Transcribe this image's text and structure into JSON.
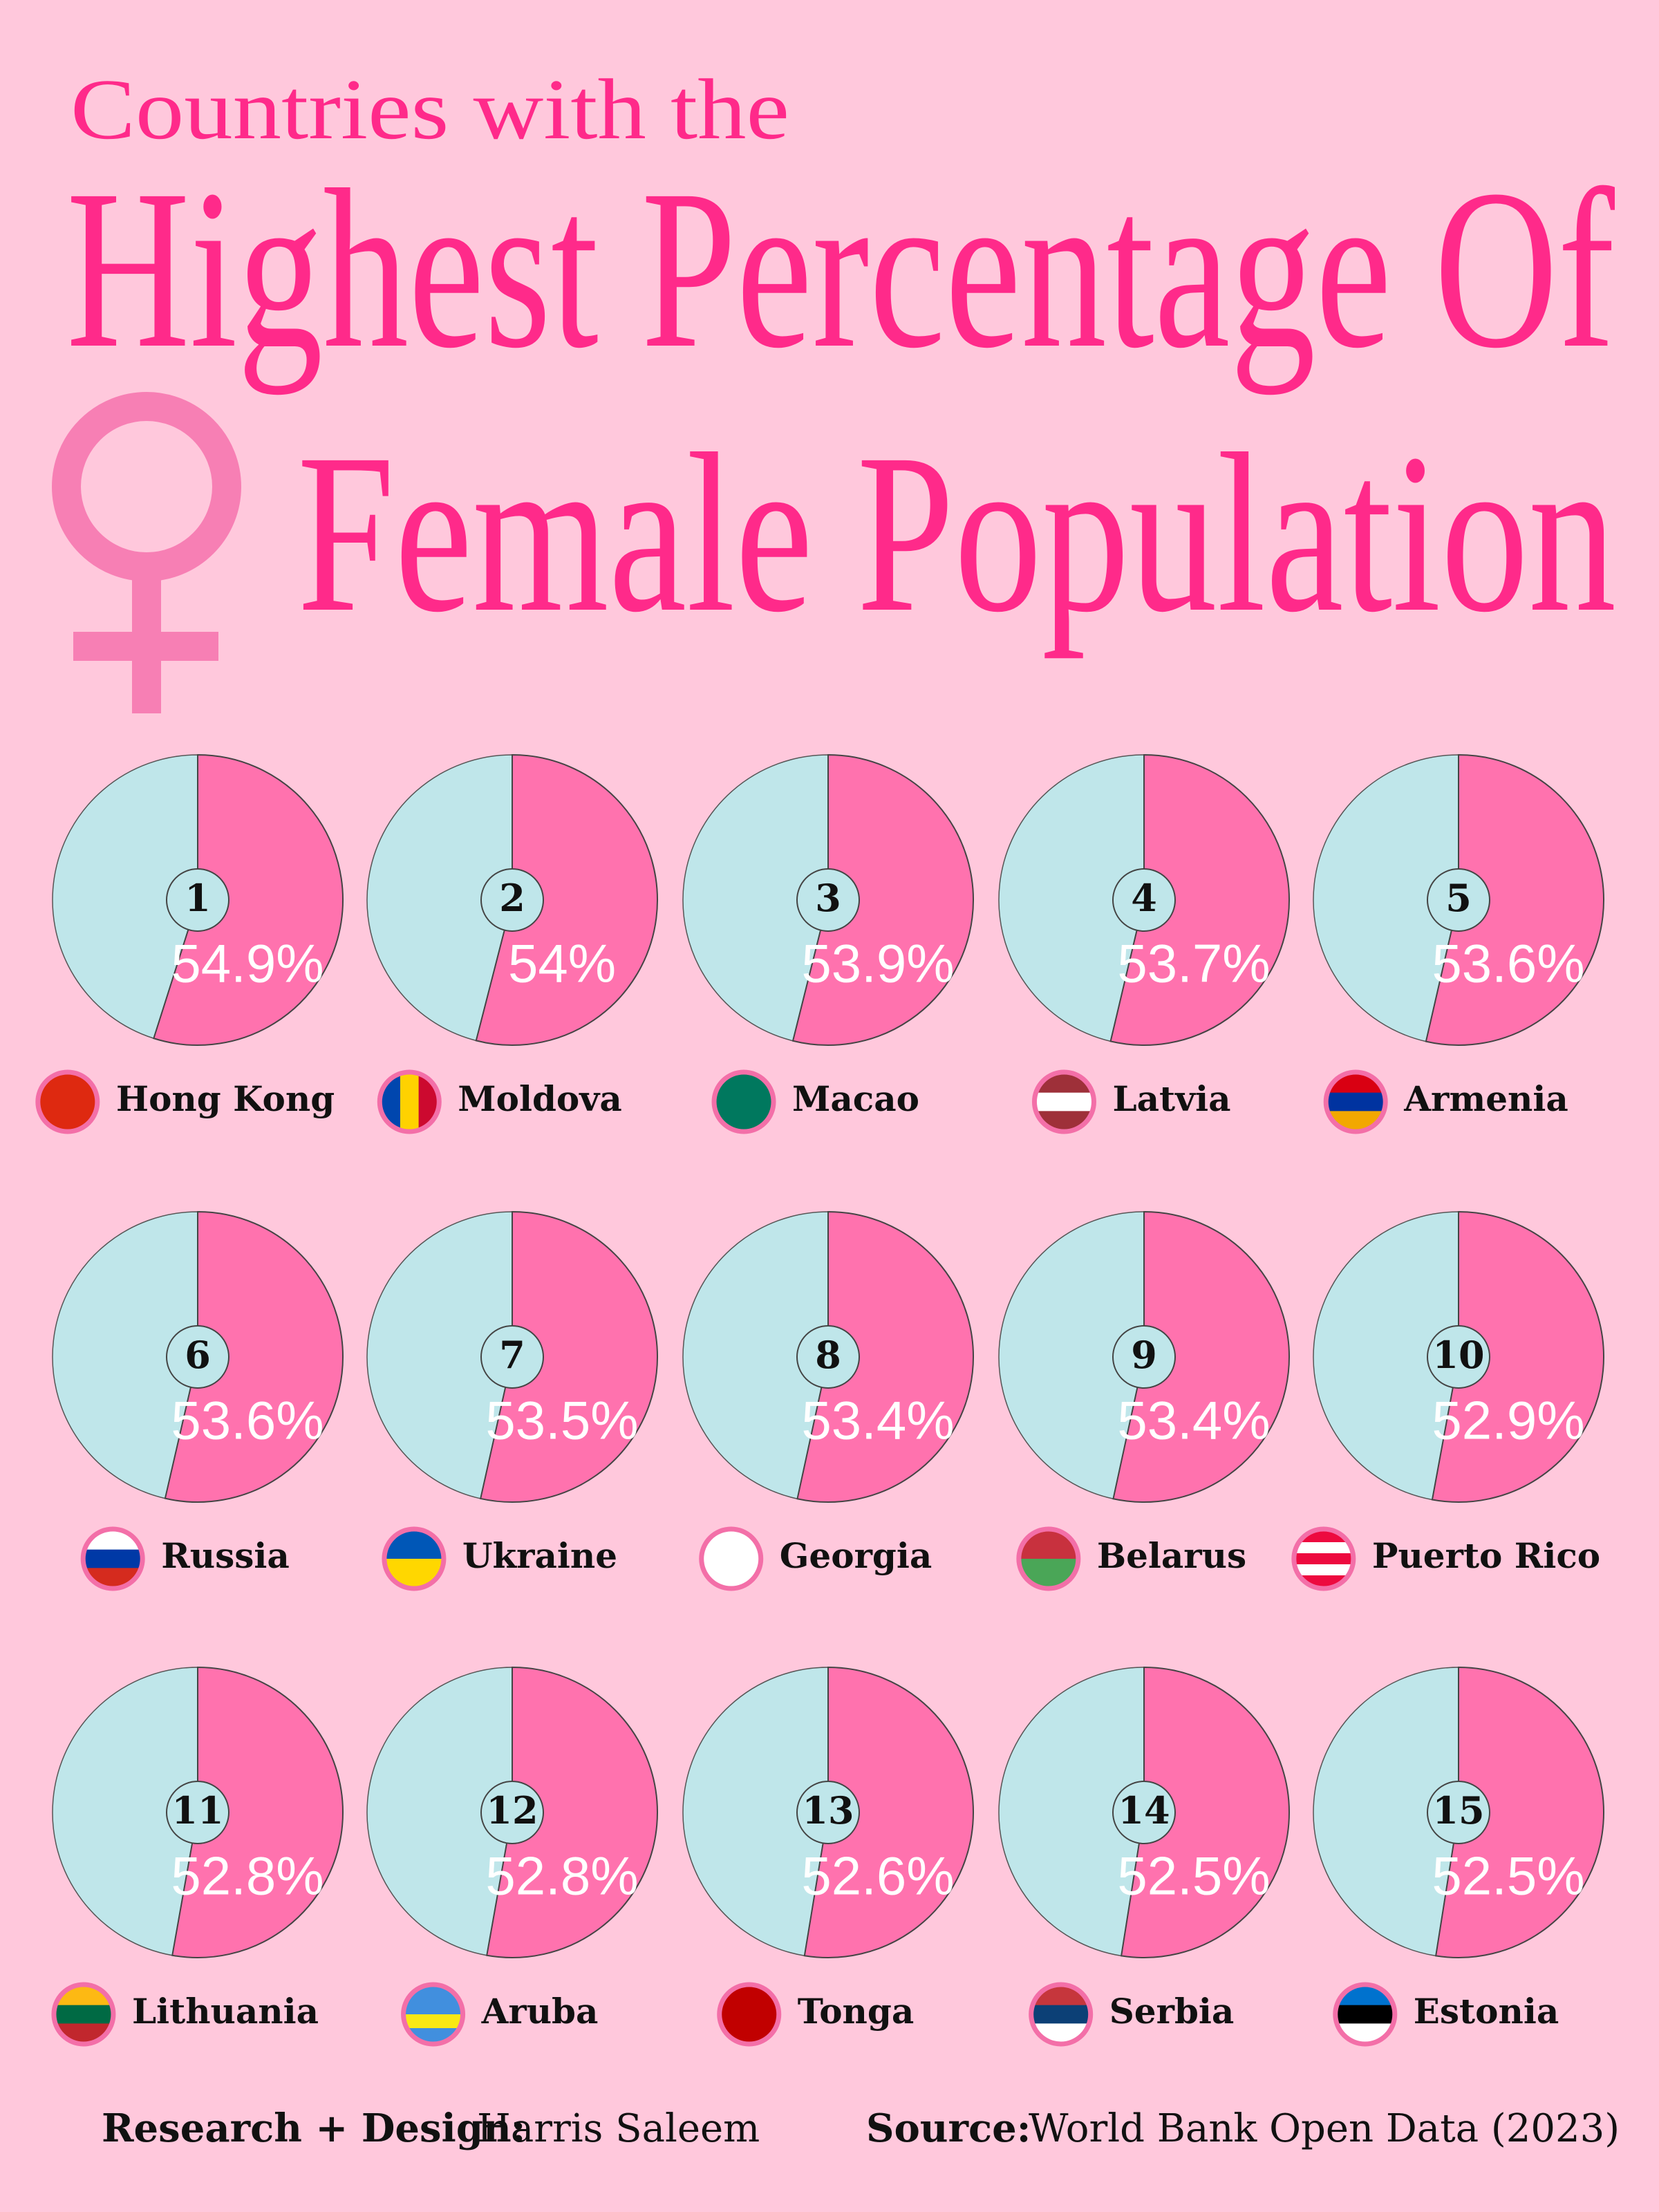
{
  "chart_data": {
    "type": "pie",
    "pretitle": "Countries with the",
    "title": "Highest Percentage Of",
    "title2": "Female Population",
    "ranks": [
      1,
      2,
      3,
      4,
      5,
      6,
      7,
      8,
      9,
      10,
      11,
      12,
      13,
      14,
      15
    ],
    "categories": [
      "Hong Kong",
      "Moldova",
      "Macao",
      "Latvia",
      "Armenia",
      "Russia",
      "Ukraine",
      "Georgia",
      "Belarus",
      "Puerto Rico",
      "Lithuania",
      "Aruba",
      "Tonga",
      "Serbia",
      "Estonia"
    ],
    "values": [
      54.9,
      54,
      53.9,
      53.7,
      53.6,
      53.6,
      53.5,
      53.4,
      53.4,
      52.9,
      52.8,
      52.8,
      52.6,
      52.5,
      52.5
    ],
    "value_labels": [
      "54.9%",
      "54%",
      "53.9%",
      "53.7%",
      "53.6%",
      "53.6%",
      "53.5%",
      "53.4%",
      "53.4%",
      "52.9%",
      "52.8%",
      "52.8%",
      "52.6%",
      "52.5%",
      "52.5%"
    ],
    "color": "#ff72ae",
    "rest_color": "#bfe6ea",
    "credit_label": "Research + Design:",
    "credit": "Harris Saleem",
    "source_label": "Source:",
    "source": "World Bank Open Data (2023)"
  }
}
